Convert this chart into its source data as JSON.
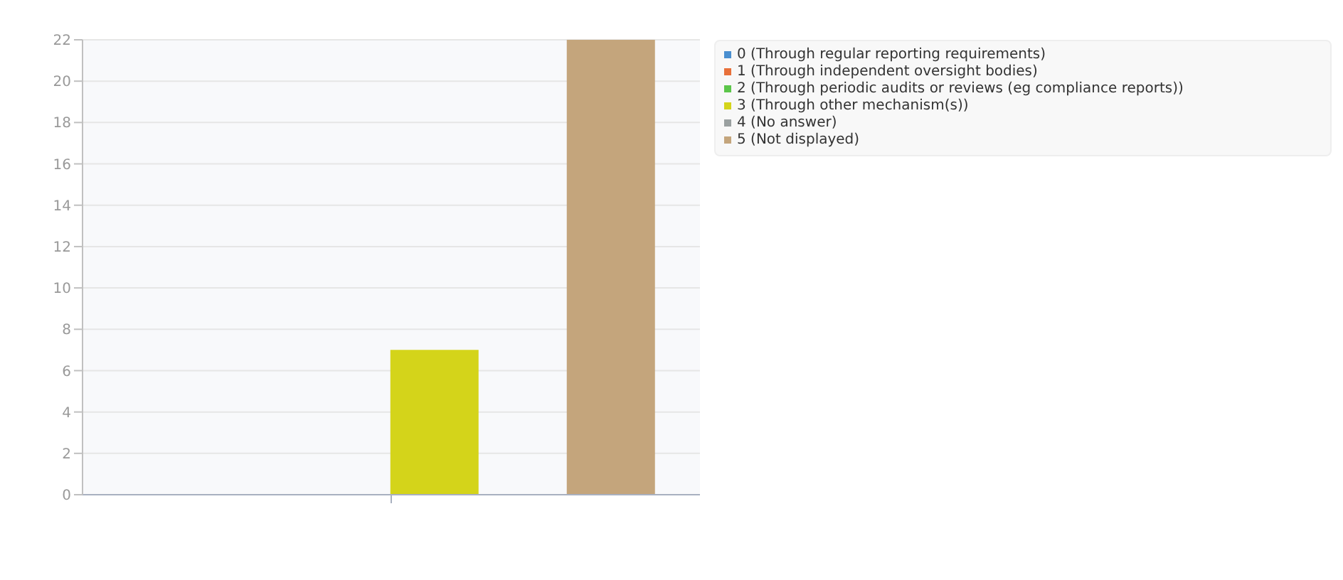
{
  "chart_data": {
    "type": "bar",
    "categories": [
      null
    ],
    "series": [
      {
        "name": "0 (Through regular reporting requirements)",
        "color": "#4a8fd0",
        "values": [
          0
        ]
      },
      {
        "name": "1 (Through independent oversight bodies)",
        "color": "#e8703a",
        "values": [
          0
        ]
      },
      {
        "name": "2 (Through periodic audits or reviews (eg compliance reports))",
        "color": "#5cc64a",
        "values": [
          0
        ]
      },
      {
        "name": "3 (Through other mechanism(s))",
        "color": "#d4d41a",
        "values": [
          7
        ]
      },
      {
        "name": "4 (No answer)",
        "color": "#9aa0a0",
        "values": [
          0
        ]
      },
      {
        "name": "5 (Not displayed)",
        "color": "#c4a57c",
        "values": [
          22
        ]
      }
    ],
    "ylim": [
      0,
      22
    ],
    "yticks": [
      0,
      2,
      4,
      6,
      8,
      10,
      12,
      14,
      16,
      18,
      20,
      22
    ],
    "grid": "y",
    "legend": "right"
  }
}
